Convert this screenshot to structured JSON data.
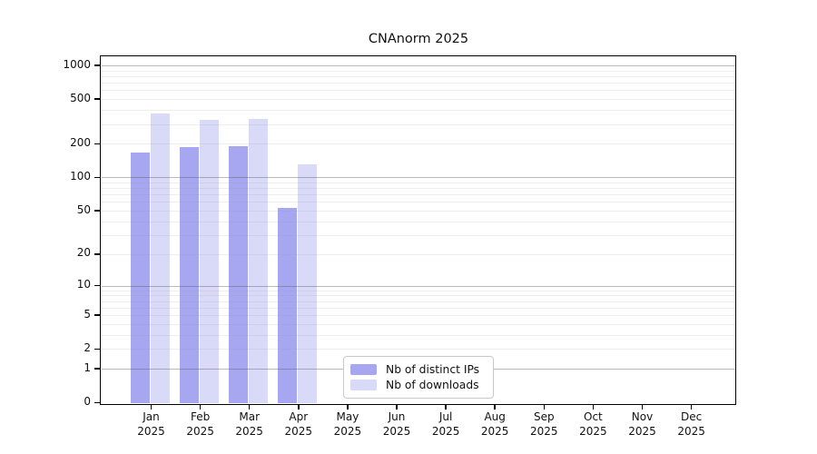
{
  "title": "CNAnorm 2025",
  "colors": {
    "distinct_ips": "#a6a6f1",
    "downloads": "#d9d9f8",
    "axis": "#000000",
    "major_grid": "#b9b9b9",
    "minor_grid": "#ececec",
    "legend_border": "#c9c9c9"
  },
  "legend": {
    "position": "bottom-center-inside"
  },
  "chart_data": {
    "type": "bar",
    "title": "CNAnorm 2025",
    "categories": [
      "Jan 2025",
      "Feb 2025",
      "Mar 2025",
      "Apr 2025",
      "May 2025",
      "Jun 2025",
      "Jul 2025",
      "Aug 2025",
      "Sep 2025",
      "Oct 2025",
      "Nov 2025",
      "Dec 2025"
    ],
    "series": [
      {
        "name": "Nb of distinct IPs",
        "color": "#a6a6f1",
        "values": [
          168,
          185,
          190,
          53,
          null,
          null,
          null,
          null,
          null,
          null,
          null,
          null
        ]
      },
      {
        "name": "Nb of downloads",
        "color": "#d9d9f8",
        "values": [
          375,
          330,
          335,
          132,
          null,
          null,
          null,
          null,
          null,
          null,
          null,
          null
        ]
      }
    ],
    "xlabel": "",
    "ylabel": "",
    "yscale": "log10(value+1)",
    "ylim": [
      0,
      1000
    ],
    "yticks": [
      0,
      1,
      2,
      5,
      10,
      20,
      50,
      100,
      200,
      500,
      1000
    ],
    "major_gridlines": [
      1,
      10,
      100,
      1000
    ],
    "minor_gridlines_rule": "n x 10^k for n=2..9, k=0..2",
    "grid": true,
    "legend_position": "bottom-center-inside"
  }
}
